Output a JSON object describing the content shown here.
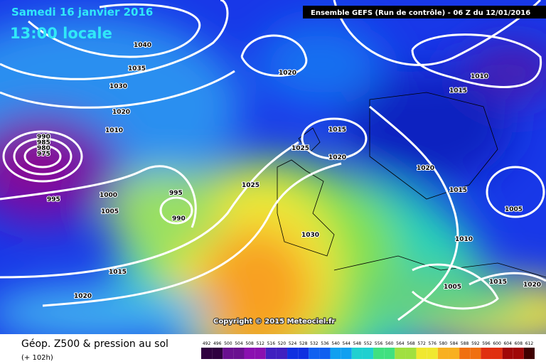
{
  "header": {
    "date": "Samedi 16 janvier 2016",
    "time": "13:00 locale",
    "model": "Ensemble GEFS  (Run de contrôle)  - 06 Z du 12/01/2016"
  },
  "isobar_labels": [
    "1040",
    "1035",
    "1030",
    "1020",
    "1010",
    "990",
    "985",
    "980",
    "975",
    "995",
    "1000",
    "1005",
    "995",
    "990",
    "1025",
    "1030",
    "1015",
    "1020",
    "1020",
    "1015",
    "1020",
    "1025",
    "1020",
    "1015",
    "1005",
    "1010",
    "1015",
    "1010",
    "1005",
    "1015",
    "1020"
  ],
  "copyright": "Copyright © 2015 Meteociel.fr",
  "legend": {
    "title": "Géop. Z500 & pression au sol",
    "subtitle": "(+ 102h)",
    "scale": [
      492,
      496,
      500,
      504,
      508,
      512,
      516,
      520,
      524,
      528,
      532,
      536,
      540,
      544,
      548,
      552,
      556,
      560,
      564,
      568,
      572,
      576,
      580,
      584,
      588,
      592,
      596,
      600,
      604,
      608,
      612
    ]
  }
}
